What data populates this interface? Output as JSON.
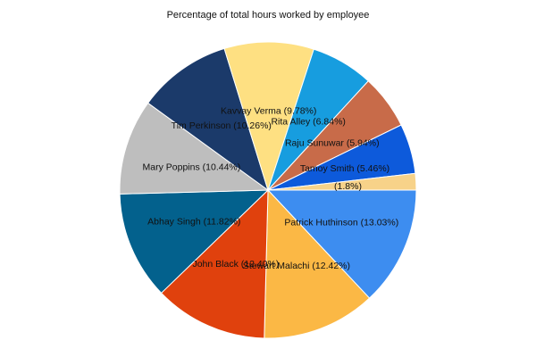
{
  "chart_data": {
    "type": "pie",
    "title": "Percentage of total hours worked by employee",
    "start_angle_deg": 90,
    "direction": "clockwise",
    "slices": [
      {
        "label": "Patrick Huthinson (13.03%)",
        "value": 13.03,
        "color": "#3D8DF0"
      },
      {
        "label": "Stewart Malachi (12.42%)",
        "value": 12.42,
        "color": "#FBB845"
      },
      {
        "label": "John Black (12.40%)",
        "value": 12.4,
        "color": "#E0410D"
      },
      {
        "label": "Abhay Singh (11.82%)",
        "value": 11.82,
        "color": "#03618D"
      },
      {
        "label": "Mary Poppins (10.44%)",
        "value": 10.44,
        "color": "#BEBEBE"
      },
      {
        "label": "Tim Perkinson (10.26%)",
        "value": 10.26,
        "color": "#1B3A6A"
      },
      {
        "label": "Kavvay Verma (9.78%)",
        "value": 9.78,
        "color": "#FEE082"
      },
      {
        "label": "Rita Alley (6.84%)",
        "value": 6.84,
        "color": "#179DDF"
      },
      {
        "label": "Raju Sunuwar (5.94%)",
        "value": 5.94,
        "color": "#C86B49"
      },
      {
        "label": "Tamoy Smith (5.46%)",
        "value": 5.46,
        "color": "#0D5ADB"
      },
      {
        "label": "(1.8%)",
        "value": 1.8,
        "color": "#F7D289"
      }
    ]
  }
}
